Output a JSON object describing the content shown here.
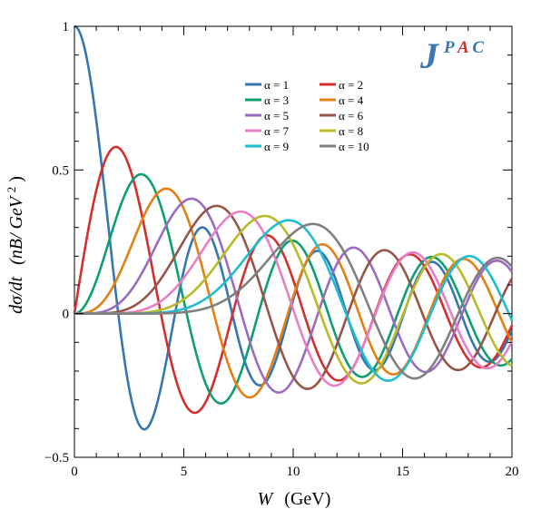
{
  "chart_data": {
    "type": "line",
    "title": "",
    "xlabel_var": "W",
    "xlabel_unit": "(GeV)",
    "ylabel_var": "dσ/dt",
    "ylabel_unit": "(nB/ GeV",
    "ylabel_sup": "2",
    "ylabel_close": ")",
    "xlim": [
      0,
      20
    ],
    "ylim": [
      -0.5,
      1
    ],
    "xticks": [
      0,
      5,
      10,
      15,
      20
    ],
    "yticks": [
      -0.5,
      0,
      0.5,
      1
    ],
    "ytick_labels": [
      "−0.5",
      "0",
      "0.5",
      "1"
    ],
    "grid": false,
    "legend_position": "top-center",
    "curve_model": "normalized Bessel: y = f(k·W) / f(x1) with f(x) = x^(a-1)·J_(a-1)(x)·… scaled to first maximum",
    "series": [
      {
        "name": "α = 1",
        "alpha": 1,
        "color": "#3477b1",
        "peak_x": 0.0,
        "peak_y": 1.0
      },
      {
        "name": "α = 2",
        "alpha": 2,
        "color": "#d32f2f",
        "peak_x": 1.9,
        "peak_y": 0.58
      },
      {
        "name": "α = 3",
        "alpha": 3,
        "color": "#0e9e72",
        "peak_x": 3.05,
        "peak_y": 0.485
      },
      {
        "name": "α = 4",
        "alpha": 4,
        "color": "#e37f13",
        "peak_x": 4.2,
        "peak_y": 0.435
      },
      {
        "name": "α = 5",
        "alpha": 5,
        "color": "#9a6cc1",
        "peak_x": 5.35,
        "peak_y": 0.4
      },
      {
        "name": "α = 6",
        "alpha": 6,
        "color": "#955649",
        "peak_x": 6.5,
        "peak_y": 0.375
      },
      {
        "name": "α = 7",
        "alpha": 7,
        "color": "#e77fc6",
        "peak_x": 7.6,
        "peak_y": 0.355
      },
      {
        "name": "α = 8",
        "alpha": 8,
        "color": "#b6bb27",
        "peak_x": 8.7,
        "peak_y": 0.34
      },
      {
        "name": "α = 9",
        "alpha": 9,
        "color": "#1ebdd0",
        "peak_x": 9.8,
        "peak_y": 0.325
      },
      {
        "name": "α = 10",
        "alpha": 10,
        "color": "#7f7f7f",
        "peak_x": 10.9,
        "peak_y": 0.312
      }
    ]
  },
  "logo": {
    "main": "J",
    "sup_p": "P",
    "sup_a": "A",
    "sup_c": "C",
    "blue": "#3b78b4",
    "red": "#d32f2f"
  }
}
